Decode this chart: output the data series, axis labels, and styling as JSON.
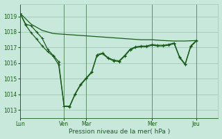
{
  "background_color": "#c8e8dc",
  "grid_color": "#a8ccbb",
  "line_color": "#1a5c1a",
  "tick_color": "#1a5c1a",
  "text_color": "#1a5c1a",
  "xlabel": "Pression niveau de la mer( hPa )",
  "ylim": [
    1012.5,
    1019.8
  ],
  "yticks": [
    1013,
    1014,
    1015,
    1016,
    1017,
    1018,
    1019
  ],
  "day_labels": [
    "Lun",
    "Ven",
    "Mar",
    "Mer",
    "Jeu"
  ],
  "day_positions": [
    0,
    0.333,
    0.5,
    1.0,
    1.333
  ],
  "xlim": [
    0,
    1.5
  ],
  "series1_x": [
    0.0,
    0.083,
    0.167,
    0.25,
    0.333,
    0.417,
    0.5,
    0.583,
    0.667,
    0.75,
    0.833,
    0.917,
    1.0,
    1.083,
    1.167,
    1.25,
    1.333
  ],
  "series1_y": [
    1019.2,
    1018.5,
    1018.1,
    1017.9,
    1017.85,
    1017.8,
    1017.75,
    1017.7,
    1017.65,
    1017.6,
    1017.55,
    1017.5,
    1017.5,
    1017.45,
    1017.42,
    1017.42,
    1017.45
  ],
  "series2_x": [
    0.0,
    0.042,
    0.083,
    0.125,
    0.167,
    0.208,
    0.25,
    0.292,
    0.333,
    0.375,
    0.417,
    0.458,
    0.5,
    0.542,
    0.583,
    0.625,
    0.667,
    0.708,
    0.75,
    0.792,
    0.833,
    0.875,
    0.917,
    0.958,
    1.0,
    1.042,
    1.083,
    1.125,
    1.167,
    1.208,
    1.25,
    1.292,
    1.333
  ],
  "series2_y": [
    1019.2,
    1018.5,
    1018.4,
    1018.0,
    1017.6,
    1016.9,
    1016.5,
    1016.1,
    1013.25,
    1013.25,
    1014.05,
    1014.65,
    1015.05,
    1015.45,
    1016.55,
    1016.65,
    1016.35,
    1016.2,
    1016.15,
    1016.5,
    1016.9,
    1017.05,
    1017.1,
    1017.1,
    1017.2,
    1017.15,
    1017.15,
    1017.2,
    1017.3,
    1016.4,
    1015.95,
    1017.1,
    1017.45
  ],
  "series3_x": [
    0.0,
    0.042,
    0.083,
    0.125,
    0.167,
    0.208,
    0.25,
    0.292,
    0.333,
    0.375,
    0.417,
    0.458,
    0.5,
    0.542,
    0.583,
    0.625,
    0.667,
    0.708,
    0.75,
    0.792,
    0.833,
    0.875,
    0.917,
    0.958,
    1.0,
    1.042,
    1.083,
    1.125,
    1.167,
    1.208,
    1.25,
    1.292,
    1.333
  ],
  "series3_y": [
    1019.2,
    1018.45,
    1017.95,
    1017.55,
    1017.1,
    1016.75,
    1016.45,
    1015.9,
    1013.25,
    1013.2,
    1014.0,
    1014.6,
    1015.0,
    1015.4,
    1016.5,
    1016.6,
    1016.3,
    1016.15,
    1016.1,
    1016.45,
    1016.85,
    1017.0,
    1017.05,
    1017.05,
    1017.15,
    1017.1,
    1017.1,
    1017.15,
    1017.25,
    1016.35,
    1015.9,
    1017.05,
    1017.4
  ]
}
